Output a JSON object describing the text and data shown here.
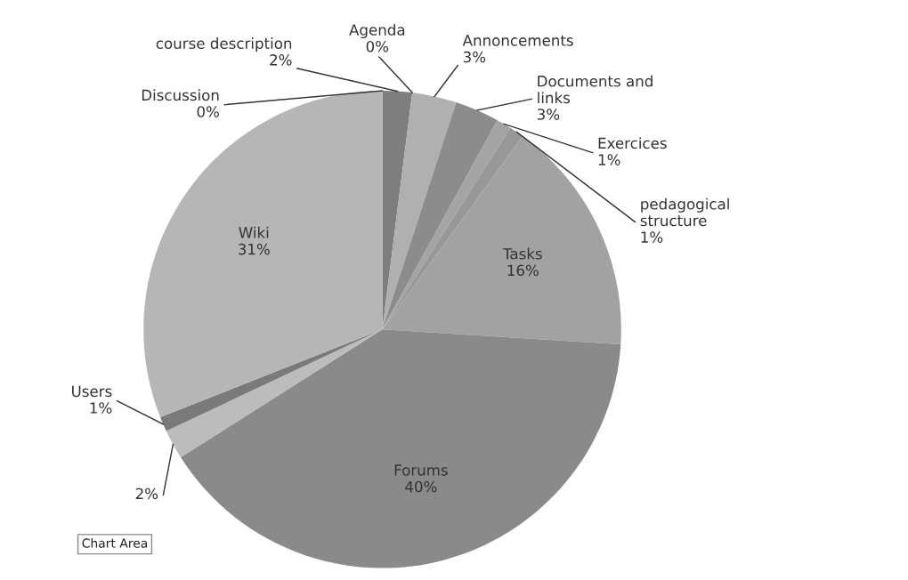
{
  "chart_data": {
    "type": "pie",
    "categories": [
      "Discussion",
      "course description",
      "Agenda",
      "Annoncements",
      "Documents and links",
      "Exercices",
      "pedagogical structure",
      "Tasks",
      "Forums",
      null,
      "Users",
      "Wiki"
    ],
    "values": [
      0,
      2,
      0,
      3,
      3,
      1,
      1,
      16,
      40,
      2,
      1,
      31
    ],
    "colors": [
      "#c8c8c8",
      "#7e7e7e",
      "#9a9a9a",
      "#b0b0b0",
      "#8c8c8c",
      "#a4a4a4",
      "#989898",
      "#a2a2a2",
      "#8a8a8a",
      "#bcbcbc",
      "#7a7a7a",
      "#b6b6b6"
    ],
    "value_labels": [
      "0%",
      "2%",
      "0%",
      "3%",
      "3%",
      "1%",
      "1%",
      "16%",
      "40%",
      "2%",
      "1%",
      "31%"
    ],
    "annotations": [
      "Chart Area"
    ]
  }
}
